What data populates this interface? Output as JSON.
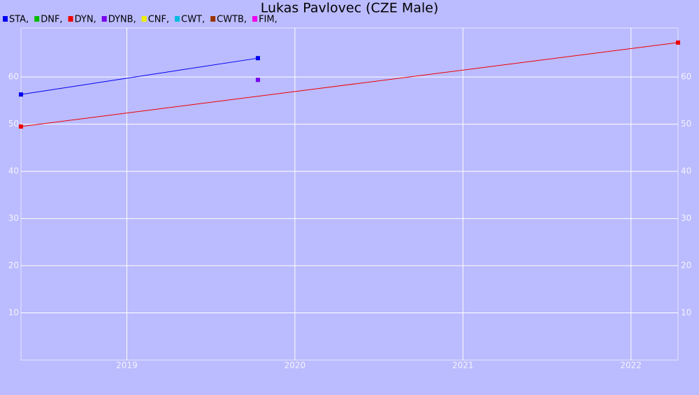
{
  "chart_data": {
    "type": "line",
    "title": "Lukas Pavlovec (CZE Male)",
    "xlim": [
      2018.37,
      2022.28
    ],
    "xticks": [
      2019,
      2020,
      2021,
      2022
    ],
    "ylim": [
      0,
      70.4
    ],
    "yticks": [
      10,
      20,
      30,
      40,
      50,
      60
    ],
    "grid": true,
    "series": [
      {
        "name": "STA,",
        "color": "#0000ee",
        "x": [
          2018.37,
          2019.78
        ],
        "values": [
          56.3,
          64
        ]
      },
      {
        "name": "DNF,",
        "color": "#00bb00",
        "x": [],
        "values": []
      },
      {
        "name": "DYN,",
        "color": "#ee0000",
        "x": [
          2018.37,
          2022.28
        ],
        "values": [
          49.5,
          67.3
        ]
      },
      {
        "name": "DYNB,",
        "color": "#7700ee",
        "x": [
          2019.78
        ],
        "values": [
          59.4
        ]
      },
      {
        "name": "CNF,",
        "color": "#eeee00",
        "x": [],
        "values": []
      },
      {
        "name": "CWT,",
        "color": "#00bbdd",
        "x": [],
        "values": []
      },
      {
        "name": "CWTB,",
        "color": "#993300",
        "x": [],
        "values": []
      },
      {
        "name": "FIM,",
        "color": "#ee00ee",
        "x": [],
        "values": []
      }
    ]
  }
}
